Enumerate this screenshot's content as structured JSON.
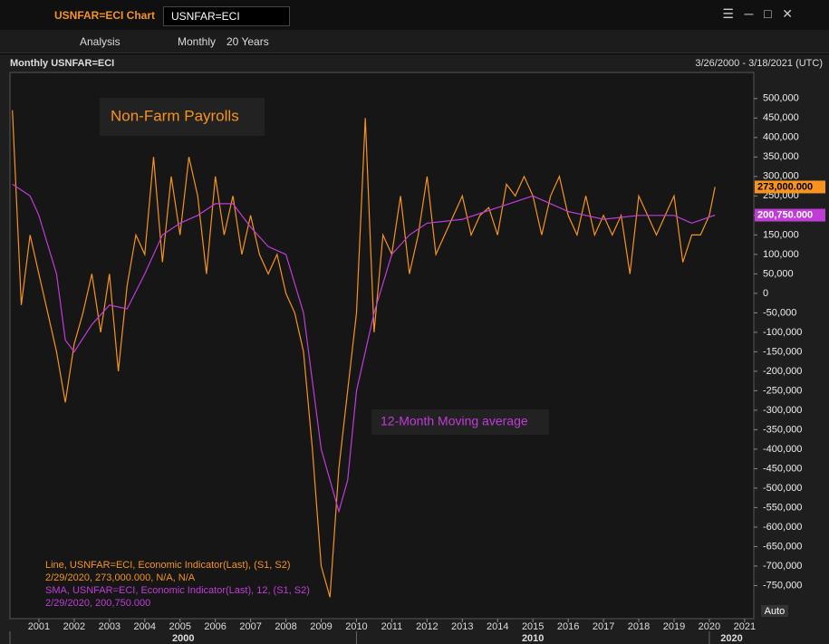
{
  "window": {
    "title": "USNFAR=ECI Chart",
    "search": "USNFAR=ECI"
  },
  "toolbar": {
    "analysis": "Analysis",
    "interval": "Monthly",
    "range": "20 Years"
  },
  "chart_header": {
    "title": "Monthly USNFAR=ECI",
    "range": "3/26/2000 - 3/18/2021 (UTC)"
  },
  "auto_button": "Auto",
  "legend": [
    {
      "line1": "Line, USNFAR=ECI, Economic Indicator(Last),  (S1, S2)",
      "line2": "2/29/2020, 273,000.000, N/A, N/A"
    },
    {
      "line1": "SMA, USNFAR=ECI, Economic Indicator(Last),  12, (S1, S2)",
      "line2": "2/29/2020, 200,750.000"
    }
  ],
  "chart_data": {
    "type": "line",
    "title": "Non-Farm Payrolls",
    "annotation": "12-Month Moving average",
    "grid": false,
    "xlim": [
      2000.18,
      2021.26
    ],
    "xticks": [
      2001,
      2002,
      2003,
      2004,
      2005,
      2006,
      2007,
      2008,
      2009,
      2010,
      2011,
      2012,
      2013,
      2014,
      2015,
      2016,
      2017,
      2018,
      2019,
      2020,
      2021
    ],
    "x_eras": [
      2000,
      2010,
      2020
    ],
    "ylim": [
      -835000,
      567000
    ],
    "yticks": [
      {
        "value": -750000,
        "label": "-750,000"
      },
      {
        "value": -700000,
        "label": "-700,000"
      },
      {
        "value": -650000,
        "label": "-650,000"
      },
      {
        "value": -600000,
        "label": "-600,000"
      },
      {
        "value": -550000,
        "label": "-550,000"
      },
      {
        "value": -500000,
        "label": "-500,000"
      },
      {
        "value": -450000,
        "label": "-450,000"
      },
      {
        "value": -400000,
        "label": "-400,000"
      },
      {
        "value": -350000,
        "label": "-350,000"
      },
      {
        "value": -300000,
        "label": "-300,000"
      },
      {
        "value": -250000,
        "label": "-250,000"
      },
      {
        "value": -200000,
        "label": "-200,000"
      },
      {
        "value": -150000,
        "label": "-150,000"
      },
      {
        "value": -100000,
        "label": "-100,000"
      },
      {
        "value": -50000,
        "label": "-50,000"
      },
      0,
      {
        "value": 50000,
        "label": "50,000"
      },
      {
        "value": 100000,
        "label": "100,000"
      },
      {
        "value": 150000,
        "label": "150,000"
      },
      {
        "value": 200000,
        "label": "200,000"
      },
      {
        "value": 250000,
        "label": "250,000"
      },
      {
        "value": 300000,
        "label": "300,000"
      },
      {
        "value": 350000,
        "label": "350,000"
      },
      {
        "value": 400000,
        "label": "400,000"
      },
      {
        "value": 450000,
        "label": "450,000"
      },
      {
        "value": 500000,
        "label": "500,000"
      }
    ],
    "series": [
      {
        "name": "Line",
        "color": "#f7931e",
        "last_value": 273000,
        "last_label": "273,000.000",
        "x": [
          2000.25,
          2000.5,
          2000.75,
          2001,
          2001.25,
          2001.5,
          2001.75,
          2002,
          2002.25,
          2002.5,
          2002.75,
          2003,
          2003.25,
          2003.5,
          2003.75,
          2004,
          2004.25,
          2004.5,
          2004.75,
          2005,
          2005.25,
          2005.5,
          2005.75,
          2006,
          2006.25,
          2006.5,
          2006.75,
          2007,
          2007.25,
          2007.5,
          2007.75,
          2008,
          2008.25,
          2008.5,
          2008.75,
          2009,
          2009.25,
          2009.5,
          2009.75,
          2010,
          2010.25,
          2010.5,
          2010.75,
          2011,
          2011.25,
          2011.5,
          2011.75,
          2012,
          2012.25,
          2012.5,
          2012.75,
          2013,
          2013.25,
          2013.5,
          2013.75,
          2014,
          2014.25,
          2014.5,
          2014.75,
          2015,
          2015.25,
          2015.5,
          2015.75,
          2016,
          2016.25,
          2016.5,
          2016.75,
          2017,
          2017.25,
          2017.5,
          2017.75,
          2018,
          2018.25,
          2018.5,
          2018.75,
          2019,
          2019.25,
          2019.5,
          2019.75,
          2020,
          2020.16
        ],
        "values": [
          470000,
          -30000,
          150000,
          50000,
          -50000,
          -150000,
          -280000,
          -130000,
          -50000,
          50000,
          -100000,
          50000,
          -200000,
          20000,
          150000,
          100000,
          350000,
          80000,
          300000,
          150000,
          350000,
          250000,
          50000,
          300000,
          150000,
          250000,
          100000,
          200000,
          100000,
          50000,
          100000,
          0,
          -50000,
          -150000,
          -400000,
          -700000,
          -780000,
          -450000,
          -250000,
          -50000,
          450000,
          -100000,
          150000,
          100000,
          250000,
          50000,
          150000,
          300000,
          100000,
          150000,
          200000,
          250000,
          150000,
          200000,
          220000,
          150000,
          280000,
          250000,
          300000,
          250000,
          150000,
          250000,
          300000,
          200000,
          150000,
          250000,
          150000,
          200000,
          150000,
          200000,
          50000,
          250000,
          200000,
          150000,
          200000,
          250000,
          80000,
          150000,
          150000,
          200000,
          273000
        ]
      },
      {
        "name": "SMA",
        "color": "#c03cd8",
        "last_value": 200750,
        "last_label": "200,750.000",
        "x": [
          2000.25,
          2000.75,
          2001,
          2001.5,
          2001.75,
          2002,
          2002.5,
          2003,
          2003.5,
          2004,
          2004.5,
          2005,
          2005.5,
          2006,
          2006.5,
          2007,
          2007.5,
          2008,
          2008.5,
          2009,
          2009.5,
          2009.75,
          2010,
          2010.5,
          2011,
          2011.5,
          2012,
          2013,
          2014,
          2015,
          2016,
          2017,
          2018,
          2019,
          2019.5,
          2020.16
        ],
        "values": [
          280000,
          250000,
          200000,
          50000,
          -120000,
          -150000,
          -80000,
          -30000,
          -40000,
          50000,
          150000,
          180000,
          200000,
          230000,
          230000,
          170000,
          120000,
          100000,
          -50000,
          -400000,
          -560000,
          -480000,
          -250000,
          -50000,
          100000,
          150000,
          180000,
          190000,
          220000,
          250000,
          210000,
          190000,
          200000,
          200000,
          180000,
          200750
        ]
      }
    ]
  }
}
